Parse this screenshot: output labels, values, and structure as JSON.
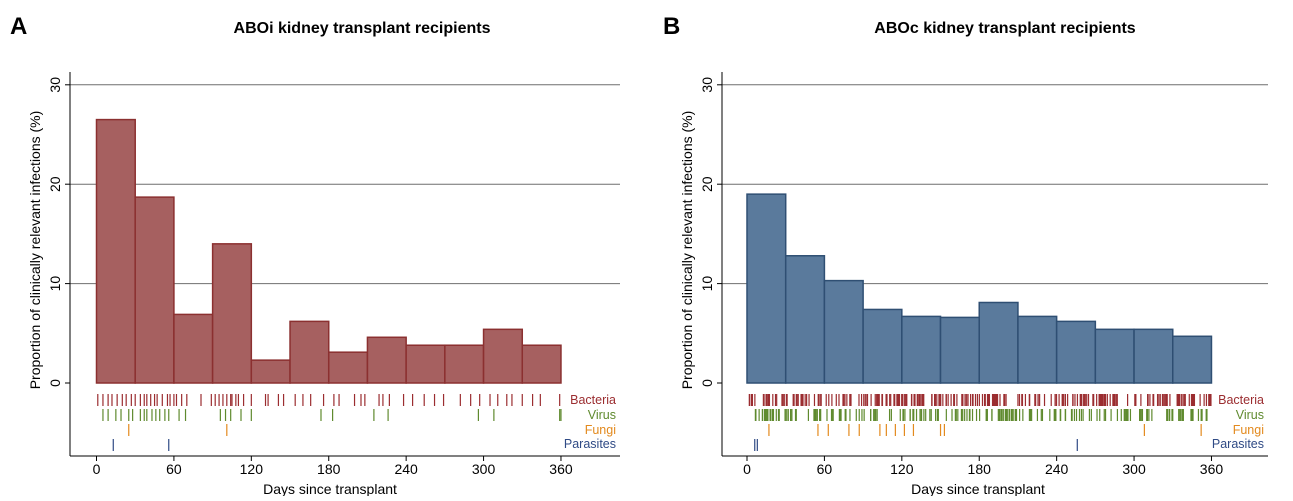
{
  "chart_data": [
    {
      "panel_letter": "A",
      "type": "bar",
      "title": "ABOi kidney transplant recipients",
      "xlabel": "Days since transplant",
      "ylabel": "Proportion of clinically relevant infections (%)",
      "xlim": [
        -22,
        400
      ],
      "ylim": [
        -6.2,
        31
      ],
      "x_ticks": [
        0,
        60,
        120,
        180,
        240,
        300,
        360
      ],
      "y_ticks": [
        0,
        10,
        20,
        30
      ],
      "grid": true,
      "bin_width_days": 30,
      "bin_starts": [
        0,
        30,
        60,
        90,
        120,
        150,
        180,
        210,
        240,
        270,
        300,
        330
      ],
      "values": [
        26.5,
        18.7,
        6.9,
        14.0,
        2.3,
        6.2,
        3.1,
        4.6,
        3.8,
        3.8,
        5.4,
        3.8
      ],
      "bar_color": "#a66060",
      "bar_edge_color": "#8b3030",
      "rug_series": [
        {
          "name": "Bacteria",
          "color": "#9b2d30",
          "days": [
            1,
            5,
            9,
            12,
            16,
            20,
            23,
            27,
            30,
            34,
            37,
            39,
            42,
            45,
            47,
            51,
            55,
            57,
            60,
            62,
            66,
            70,
            81,
            89,
            92,
            95,
            98,
            101,
            104,
            105,
            108,
            110,
            114,
            120,
            131,
            133,
            141,
            145,
            154,
            160,
            166,
            176,
            184,
            188,
            200,
            205,
            208,
            219,
            222,
            227,
            238,
            245,
            254,
            262,
            269,
            282,
            290,
            297,
            305,
            311,
            318,
            322,
            330,
            338,
            344,
            359
          ]
        },
        {
          "name": "Virus",
          "color": "#5f8a2e",
          "days": [
            5,
            9,
            15,
            19,
            25,
            28,
            34,
            37,
            39,
            43,
            46,
            49,
            53,
            56,
            64,
            69,
            96,
            100,
            104,
            112,
            120,
            174,
            183,
            215,
            226,
            296,
            308,
            359,
            360
          ]
        },
        {
          "name": "Fungi",
          "color": "#e38a1e",
          "days": [
            25,
            101
          ]
        },
        {
          "name": "Parasites",
          "color": "#2f4a85",
          "days": [
            13,
            56
          ]
        }
      ]
    },
    {
      "panel_letter": "B",
      "type": "bar",
      "title": "ABOc kidney transplant recipients",
      "xlabel": "Days since transplant",
      "ylabel": "Proportion of clinically relevant infections (%)",
      "xlim": [
        -22,
        400
      ],
      "ylim": [
        -6.2,
        31
      ],
      "x_ticks": [
        0,
        60,
        120,
        180,
        240,
        300,
        360
      ],
      "y_ticks": [
        0,
        10,
        20,
        30
      ],
      "grid": true,
      "bin_width_days": 30,
      "bin_starts": [
        0,
        30,
        60,
        90,
        120,
        150,
        180,
        210,
        240,
        270,
        300,
        330
      ],
      "values": [
        19.0,
        12.8,
        10.3,
        7.4,
        6.7,
        6.6,
        8.1,
        6.7,
        6.2,
        5.4,
        5.4,
        4.7
      ],
      "bar_color": "#5a7a9c",
      "bar_edge_color": "#2f4f73",
      "rug_density": {
        "Bacteria": {
          "start": 1,
          "end": 360,
          "count": 260
        },
        "Virus": {
          "start": 6,
          "end": 358,
          "count": 200
        }
      },
      "rug_series": [
        {
          "name": "Bacteria",
          "color": "#9b2d30",
          "days": []
        },
        {
          "name": "Virus",
          "color": "#5f8a2e",
          "days": []
        },
        {
          "name": "Fungi",
          "color": "#e38a1e",
          "days": [
            17,
            55,
            63,
            79,
            87,
            103,
            108,
            115,
            122,
            129,
            150,
            153,
            308,
            352
          ]
        },
        {
          "name": "Parasites",
          "color": "#2f4a85",
          "days": [
            6,
            8,
            256
          ]
        }
      ]
    }
  ]
}
